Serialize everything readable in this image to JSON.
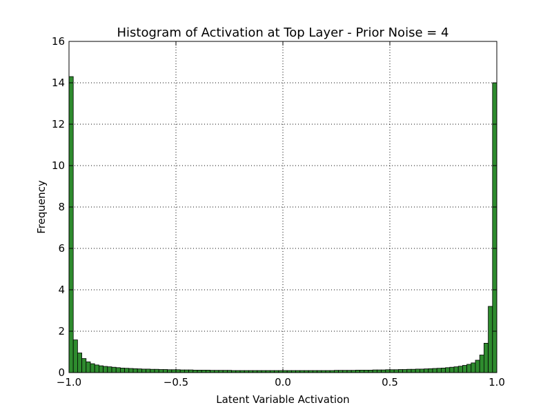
{
  "chart_data": {
    "type": "bar",
    "title": "Histogram of Activation at Top Layer - Prior Noise = 4",
    "xlabel": "Latent Variable Activation",
    "ylabel": "Frequency",
    "xlim": [
      -1.0,
      1.0
    ],
    "ylim": [
      0,
      16
    ],
    "x_ticks": [
      -1.0,
      -0.5,
      0.0,
      0.5,
      1.0
    ],
    "x_tick_labels": [
      "−1.0",
      "−0.5",
      "0.0",
      "0.5",
      "1.0"
    ],
    "y_ticks": [
      0,
      2,
      4,
      6,
      8,
      10,
      12,
      14,
      16
    ],
    "y_tick_labels": [
      "0",
      "2",
      "4",
      "6",
      "8",
      "10",
      "12",
      "14",
      "16"
    ],
    "grid": true,
    "bar_color": "#2e8b2e",
    "bin_count": 100,
    "bin_start": -1.0,
    "bin_width": 0.02,
    "values": [
      14.3,
      1.58,
      0.95,
      0.68,
      0.52,
      0.43,
      0.37,
      0.33,
      0.3,
      0.28,
      0.26,
      0.24,
      0.22,
      0.21,
      0.2,
      0.19,
      0.18,
      0.17,
      0.17,
      0.16,
      0.16,
      0.15,
      0.15,
      0.14,
      0.14,
      0.14,
      0.13,
      0.13,
      0.13,
      0.12,
      0.12,
      0.12,
      0.12,
      0.11,
      0.11,
      0.11,
      0.11,
      0.11,
      0.1,
      0.1,
      0.1,
      0.1,
      0.1,
      0.1,
      0.1,
      0.1,
      0.1,
      0.1,
      0.1,
      0.1,
      0.1,
      0.1,
      0.1,
      0.1,
      0.1,
      0.1,
      0.1,
      0.1,
      0.1,
      0.1,
      0.1,
      0.1,
      0.11,
      0.11,
      0.11,
      0.11,
      0.11,
      0.12,
      0.12,
      0.12,
      0.12,
      0.13,
      0.13,
      0.13,
      0.14,
      0.14,
      0.14,
      0.15,
      0.15,
      0.16,
      0.16,
      0.17,
      0.17,
      0.18,
      0.19,
      0.2,
      0.21,
      0.22,
      0.24,
      0.26,
      0.28,
      0.31,
      0.35,
      0.4,
      0.47,
      0.6,
      0.85,
      1.42,
      3.2,
      14.0
    ]
  }
}
